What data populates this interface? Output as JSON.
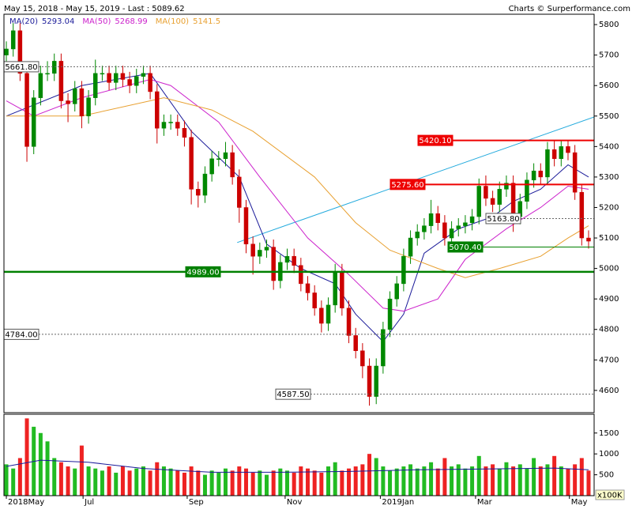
{
  "chart_data": {
    "type": "candlestick",
    "header": "May 15, 2018 - May 15, 2019 - Last : 5089.62",
    "credit": "Charts © Surperformance.com",
    "up_color": "#008800",
    "down_color": "#cc0000",
    "xlim": [
      -0.35,
      85.81
    ],
    "xticks": [
      {
        "value": 0,
        "label": "2018May"
      },
      {
        "value": 11.2,
        "label": "Jul"
      },
      {
        "value": 26.4,
        "label": "Sep"
      },
      {
        "value": 40.7,
        "label": "Nov"
      },
      {
        "value": 54.6,
        "label": "2019Jan"
      },
      {
        "value": 68.5,
        "label": "Mar"
      },
      {
        "value": 82.2,
        "label": "May"
      }
    ],
    "ylim": [
      4527,
      5834
    ],
    "yticks": [
      4600,
      4700,
      4800,
      4900,
      5000,
      5100,
      5200,
      5300,
      5400,
      5500,
      5600,
      5700,
      5800
    ],
    "open": [
      5700,
      5720,
      5780,
      5640,
      5400,
      5560,
      5640,
      5640,
      5680,
      5550,
      5540,
      5590,
      5500,
      5560,
      5640,
      5640,
      5610,
      5640,
      5620,
      5600,
      5630,
      5640,
      5580,
      5460,
      5480,
      5480,
      5460,
      5430,
      5260,
      5240,
      5310,
      5360,
      5360,
      5380,
      5300,
      5200,
      5080,
      5040,
      5060,
      5070,
      4960,
      5020,
      5040,
      5010,
      4950,
      4920,
      4870,
      4820,
      4880,
      4990,
      4870,
      4780,
      4730,
      4680,
      4580,
      4680,
      4800,
      4900,
      4950,
      5040,
      5100,
      5120,
      5140,
      5180,
      5150,
      5100,
      5130,
      5140,
      5150,
      5170,
      5270,
      5230,
      5210,
      5260,
      5280,
      5170,
      5220,
      5290,
      5320,
      5300,
      5390,
      5360,
      5400,
      5380,
      5250,
      5100
    ],
    "high": [
      5745,
      5805,
      5805,
      5665,
      5585,
      5665,
      5680,
      5705,
      5705,
      5575,
      5615,
      5615,
      5585,
      5685,
      5665,
      5665,
      5665,
      5665,
      5645,
      5655,
      5665,
      5665,
      5605,
      5505,
      5505,
      5505,
      5485,
      5455,
      5285,
      5335,
      5385,
      5385,
      5415,
      5405,
      5325,
      5225,
      5105,
      5085,
      5095,
      5095,
      5045,
      5065,
      5065,
      5035,
      4975,
      4945,
      4895,
      4905,
      5015,
      5015,
      4895,
      4805,
      4755,
      4705,
      4705,
      4825,
      4925,
      4975,
      5065,
      5125,
      5145,
      5165,
      5225,
      5205,
      5175,
      5155,
      5165,
      5175,
      5195,
      5295,
      5305,
      5255,
      5285,
      5305,
      5305,
      5245,
      5315,
      5345,
      5345,
      5415,
      5420,
      5420,
      5420,
      5405,
      5275,
      5125
    ],
    "low": [
      5675,
      5695,
      5615,
      5350,
      5375,
      5535,
      5615,
      5615,
      5525,
      5480,
      5515,
      5460,
      5475,
      5535,
      5615,
      5585,
      5585,
      5595,
      5575,
      5575,
      5605,
      5555,
      5410,
      5435,
      5455,
      5435,
      5400,
      5210,
      5200,
      5215,
      5285,
      5335,
      5335,
      5275,
      5150,
      5050,
      4980,
      5015,
      5035,
      4930,
      4935,
      4995,
      4985,
      4925,
      4895,
      4845,
      4790,
      4795,
      4855,
      4845,
      4755,
      4705,
      4640,
      4550,
      4555,
      4655,
      4775,
      4875,
      4925,
      5015,
      5075,
      5095,
      5115,
      5125,
      5075,
      5075,
      5105,
      5115,
      5125,
      5145,
      5205,
      5185,
      5185,
      5235,
      5120,
      5145,
      5195,
      5265,
      5275,
      5275,
      5335,
      5335,
      5355,
      5225,
      5075,
      5065
    ],
    "close": [
      5720,
      5780,
      5640,
      5400,
      5560,
      5640,
      5640,
      5680,
      5550,
      5540,
      5590,
      5500,
      5560,
      5640,
      5640,
      5610,
      5640,
      5620,
      5600,
      5630,
      5640,
      5580,
      5460,
      5480,
      5480,
      5460,
      5430,
      5260,
      5240,
      5310,
      5360,
      5360,
      5380,
      5300,
      5200,
      5080,
      5040,
      5060,
      5070,
      4960,
      5020,
      5040,
      5010,
      4950,
      4920,
      4870,
      4820,
      4880,
      4990,
      4870,
      4780,
      4730,
      4680,
      4580,
      4680,
      4800,
      4900,
      4950,
      5040,
      5100,
      5120,
      5140,
      5180,
      5150,
      5100,
      5130,
      5140,
      5150,
      5170,
      5270,
      5230,
      5210,
      5260,
      5280,
      5170,
      5220,
      5290,
      5320,
      5300,
      5390,
      5360,
      5400,
      5380,
      5250,
      5100,
      5089.62
    ],
    "series": [
      {
        "name": "MA(20)",
        "last": 5293.04,
        "color": "#1a1a99",
        "x": [
          0,
          11,
          21,
          27,
          34,
          38,
          43,
          48,
          51,
          55,
          58,
          61,
          66,
          71,
          74,
          78,
          82,
          85
        ],
        "values": [
          5500,
          5600,
          5640,
          5450,
          5300,
          5080,
          5000,
          4950,
          4850,
          4760,
          4850,
          5050,
          5130,
          5170,
          5220,
          5260,
          5340,
          5300
        ]
      },
      {
        "name": "MA(50)",
        "last": 5268.99,
        "color": "#cc22cc",
        "x": [
          0,
          4,
          11,
          21,
          24,
          31,
          37,
          44,
          50,
          55,
          58,
          63,
          67,
          73,
          78,
          82,
          85
        ],
        "values": [
          5550,
          5500,
          5560,
          5620,
          5600,
          5480,
          5300,
          5100,
          4980,
          4870,
          4860,
          4900,
          5030,
          5130,
          5200,
          5270,
          5260
        ]
      },
      {
        "name": "MA(100)",
        "last": 5141.5,
        "color": "#e8a030",
        "x": [
          0,
          11,
          23,
          30,
          36,
          45,
          51,
          56,
          63,
          67,
          72,
          78,
          82,
          85
        ],
        "values": [
          5500,
          5500,
          5560,
          5520,
          5450,
          5300,
          5150,
          5060,
          5000,
          4970,
          5000,
          5040,
          5100,
          5140
        ]
      }
    ],
    "trendline": {
      "color": "#22aadd",
      "x": [
        33.7,
        85.81
      ],
      "values": [
        5085,
        5497
      ]
    },
    "levels": [
      {
        "value": 5661.8,
        "label": "5661.80",
        "color": "#666666",
        "style": "dotted"
      },
      {
        "value": 4784,
        "label": "4784.00",
        "color": "#666666",
        "style": "dotted"
      },
      {
        "value": 4587.5,
        "label": "4587.50",
        "color": "#666666",
        "style": "dotted"
      },
      {
        "value": 5420.1,
        "label": "5420.10",
        "color": "#ee0000",
        "style": "solid"
      },
      {
        "value": 5275.6,
        "label": "5275.60",
        "color": "#ee0000",
        "style": "solid"
      },
      {
        "value": 5163.8,
        "label": "5163.80",
        "color": "#666666",
        "style": "dotted"
      },
      {
        "value": 5070.4,
        "label": "5070.40",
        "color": "#008000",
        "style": "solid"
      },
      {
        "value": 4989,
        "label": "4989.00",
        "color": "#008000",
        "style": "thick"
      }
    ],
    "volume": {
      "unit": "x100K",
      "ylim": [
        0,
        1950
      ],
      "yticks": [
        500,
        1000,
        1500
      ],
      "values": [
        750,
        650,
        900,
        1850,
        1650,
        1500,
        1300,
        900,
        800,
        700,
        650,
        1200,
        700,
        650,
        600,
        700,
        550,
        700,
        600,
        650,
        700,
        600,
        800,
        700,
        650,
        600,
        550,
        700,
        600,
        500,
        600,
        550,
        650,
        600,
        700,
        650,
        550,
        600,
        500,
        600,
        650,
        600,
        550,
        700,
        650,
        600,
        550,
        700,
        800,
        600,
        650,
        700,
        750,
        1000,
        900,
        700,
        600,
        650,
        700,
        750,
        650,
        700,
        800,
        650,
        900,
        700,
        750,
        650,
        700,
        950,
        700,
        750,
        650,
        800,
        700,
        750,
        650,
        900,
        700,
        750,
        950,
        700,
        650,
        750,
        900,
        600
      ],
      "ma": {
        "color": "#1a1a99",
        "x": [
          0,
          5,
          12,
          20,
          30,
          40,
          50,
          60,
          70,
          80,
          85
        ],
        "values": [
          700,
          850,
          800,
          650,
          560,
          560,
          580,
          620,
          640,
          660,
          620
        ]
      }
    }
  }
}
